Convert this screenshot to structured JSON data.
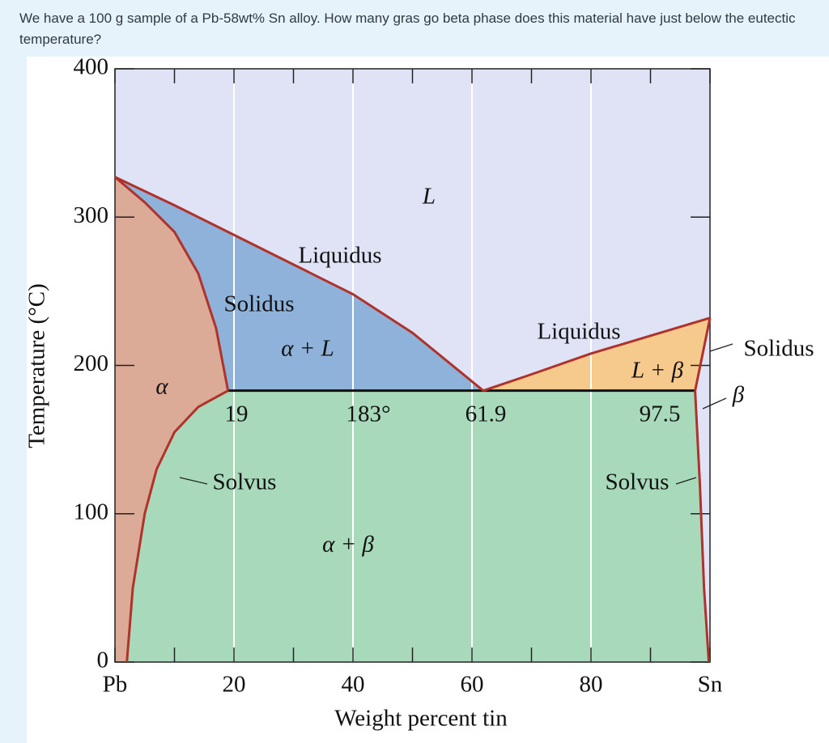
{
  "question": "We have a 100 g sample of a Pb-58wt% Sn alloy. How many gras go beta phase does this material have just below the eutectic temperature?",
  "chart_data": {
    "type": "phase-diagram",
    "xlabel": "Weight percent tin",
    "ylabel": "Temperature (°C)",
    "xlim": [
      0,
      100
    ],
    "ylim": [
      0,
      400
    ],
    "xticks": [
      {
        "value": 0,
        "label": "Pb"
      },
      20,
      40,
      60,
      80,
      {
        "value": 100,
        "label": "Sn"
      }
    ],
    "xminor_ticks": [
      10,
      30,
      50,
      70,
      90
    ],
    "yticks": [
      0,
      100,
      200,
      300,
      400
    ],
    "grid": "x",
    "regions": [
      {
        "label": "L",
        "color": "#dfe3f5",
        "x": [
          0,
          100,
          100,
          90,
          80,
          70,
          61.9,
          50,
          40,
          30,
          20,
          10,
          0
        ],
        "y": [
          400,
          400,
          232,
          220,
          208,
          194,
          183,
          222,
          248,
          268,
          288,
          308,
          327
        ]
      },
      {
        "label": "β",
        "color": "#dfe3f5",
        "x": [
          100,
          97.5,
          98.3,
          99,
          99.8,
          100
        ],
        "y": [
          232,
          183,
          120,
          50,
          0,
          0
        ]
      },
      {
        "label": "α",
        "color": "#dcab98",
        "x": [
          0,
          5,
          10,
          14,
          17,
          19,
          14,
          10,
          7,
          5,
          3,
          2,
          0
        ],
        "y": [
          327,
          310,
          290,
          262,
          225,
          183,
          172,
          155,
          130,
          100,
          50,
          0,
          0
        ]
      },
      {
        "label": "α + L",
        "color": "#8fb2da",
        "x": [
          0,
          10,
          20,
          30,
          40,
          50,
          61.9,
          19,
          17,
          14,
          10,
          5
        ],
        "y": [
          327,
          308,
          288,
          268,
          248,
          222,
          183,
          183,
          225,
          262,
          290,
          310
        ]
      },
      {
        "label": "L + β",
        "color": "#f6c98c",
        "x": [
          61.9,
          70,
          80,
          90,
          100,
          97.5
        ],
        "y": [
          183,
          194,
          208,
          220,
          232,
          183
        ]
      },
      {
        "label": "α + β",
        "color": "#a8d9bb",
        "x": [
          19,
          97.5,
          98.3,
          99,
          99.8,
          2,
          3,
          5,
          7,
          10,
          14
        ],
        "y": [
          183,
          183,
          120,
          50,
          0,
          0,
          50,
          100,
          130,
          155,
          172
        ]
      }
    ],
    "boundary_color": "#b0322a",
    "boundaries": [
      {
        "label": "Liquidus",
        "x": [
          0,
          10,
          20,
          30,
          40,
          50,
          61.9
        ],
        "y": [
          327,
          308,
          288,
          268,
          248,
          222,
          183
        ]
      },
      {
        "label": "Solidus",
        "x": [
          0,
          5,
          10,
          14,
          17,
          19
        ],
        "y": [
          327,
          310,
          290,
          262,
          225,
          183
        ]
      },
      {
        "label": "Solvus",
        "x": [
          19,
          14,
          10,
          7,
          5,
          3,
          2
        ],
        "y": [
          183,
          172,
          155,
          130,
          100,
          50,
          0
        ]
      },
      {
        "label": "Liquidus",
        "x": [
          61.9,
          70,
          80,
          90,
          100
        ],
        "y": [
          183,
          194,
          208,
          220,
          232
        ]
      },
      {
        "label": "Solidus",
        "x": [
          97.5,
          100
        ],
        "y": [
          183,
          232
        ]
      },
      {
        "label": "Solvus",
        "x": [
          97.5,
          98.3,
          99,
          99.8
        ],
        "y": [
          183,
          120,
          50,
          0
        ]
      }
    ],
    "eutectic": {
      "temperature": {
        "value": 183,
        "label": "183°"
      },
      "compositions": [
        19,
        61.9,
        97.5
      ]
    }
  }
}
